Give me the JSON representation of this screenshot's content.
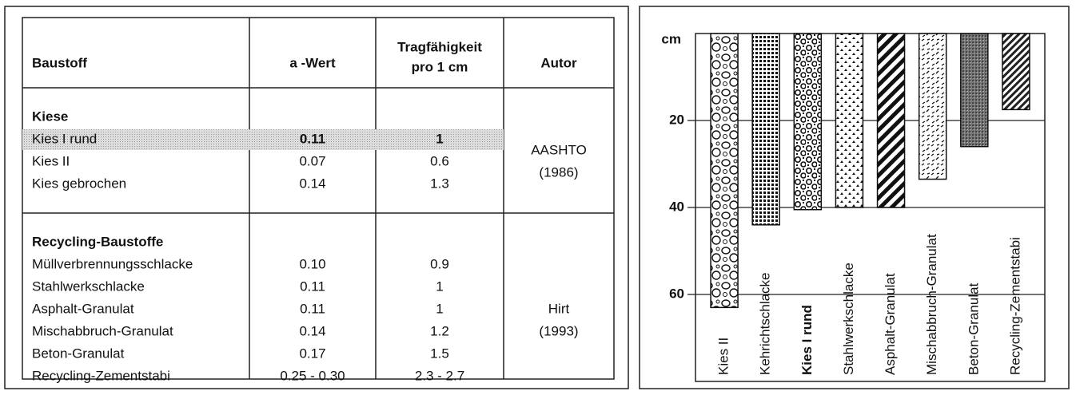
{
  "table": {
    "columns": [
      [
        "Baustoff"
      ],
      [
        "a -Wert"
      ],
      [
        "Tragfähigkeit",
        "pro 1 cm"
      ],
      [
        "Autor"
      ]
    ],
    "groups": [
      {
        "title": "Kiese",
        "author": [
          "AASHTO",
          "(1986)"
        ],
        "rows": [
          {
            "cells": [
              "Kies I rund",
              "0.11",
              "1"
            ],
            "highlight": true
          },
          {
            "cells": [
              "Kies II",
              "0.07",
              "0.6"
            ]
          },
          {
            "cells": [
              "Kies gebrochen",
              "0.14",
              "1.3"
            ]
          }
        ]
      },
      {
        "title": "Recycling-Baustoffe",
        "author": [
          "Hirt",
          "(1993)"
        ],
        "rows": [
          {
            "cells": [
              "Müllverbrennungsschlacke",
              "0.10",
              "0.9"
            ]
          },
          {
            "cells": [
              "Stahlwerkschlacke",
              "0.11",
              "1"
            ]
          },
          {
            "cells": [
              "Asphalt-Granulat",
              "0.11",
              "1"
            ]
          },
          {
            "cells": [
              "Mischabbruch-Granulat",
              "0.14",
              "1.2"
            ]
          },
          {
            "cells": [
              "Beton-Granulat",
              "0.17",
              "1.5"
            ]
          },
          {
            "cells": [
              "Recycling-Zementstabi",
              "0.25 - 0.30",
              "2.3 - 2.7"
            ]
          }
        ]
      }
    ]
  },
  "chart_data": {
    "type": "bar",
    "y_label": "cm",
    "categories": [
      "Kies II",
      "Kehrichtschlacke",
      "Kies I rund",
      "Stahlwerkschlacke",
      "Asphalt-Granulat",
      "Mischabbruch-Granulat",
      "Beton-Granulat",
      "Recycling-Zementstabi"
    ],
    "values": [
      63,
      44,
      40.5,
      40,
      40,
      33.5,
      26,
      17.5
    ],
    "ylim": [
      0,
      80
    ],
    "yticks": [
      20,
      40,
      60
    ],
    "y_inverted": true,
    "grid": true
  }
}
